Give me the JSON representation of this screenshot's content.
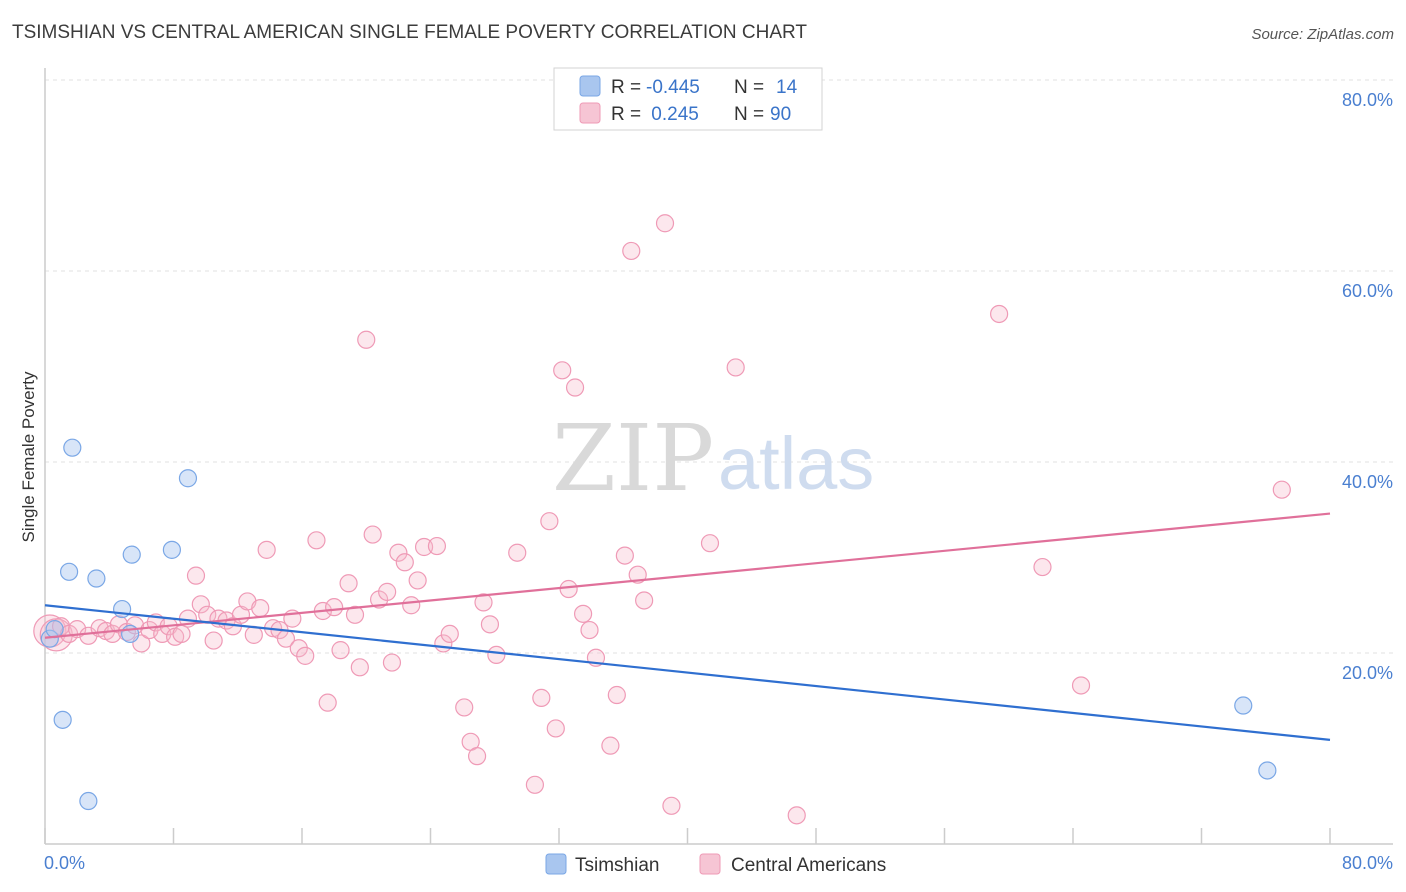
{
  "header": {
    "title": "TSIMSHIAN VS CENTRAL AMERICAN SINGLE FEMALE POVERTY CORRELATION CHART",
    "source": "Source: ZipAtlas.com"
  },
  "watermark": {
    "zip": "ZIP",
    "atlas": "atlas"
  },
  "legend_box": {
    "rows": [
      {
        "r_label": "R =",
        "r_value": "-0.445",
        "n_label": "N =",
        "n_value": "14",
        "color": "#a9c6ef"
      },
      {
        "r_label": "R =",
        "r_value": " 0.245",
        "n_label": "N =",
        "n_value": "90",
        "color": "#f6b9cc"
      }
    ]
  },
  "bottom_legend": {
    "items": [
      {
        "label": "Tsimshian",
        "color": "#a9c6ef"
      },
      {
        "label": "Central Americans",
        "color": "#f6b9cc"
      }
    ]
  },
  "chart_data": {
    "type": "scatter",
    "title": "TSIMSHIAN VS CENTRAL AMERICAN SINGLE FEMALE POVERTY CORRELATION CHART",
    "xlabel": "",
    "ylabel": "Single Female Poverty",
    "xlim": [
      0,
      80
    ],
    "ylim": [
      0,
      80
    ],
    "x_tick_labels": [
      "0.0%",
      "80.0%"
    ],
    "y_ticks": [
      20,
      40,
      60,
      80
    ],
    "y_tick_labels": [
      "20.0%",
      "40.0%",
      "60.0%",
      "80.0%"
    ],
    "grid": true,
    "colors": {
      "tsimshian": "#7aa7e6",
      "tsimshian_line": "#2f6fd0",
      "central": "#ef9ab6",
      "central_line": "#e0709a"
    },
    "series": [
      {
        "name": "Tsimshian",
        "trend": {
          "x0": 0,
          "y0": 25.0,
          "x1": 80,
          "y1": 10.9
        },
        "points": [
          [
            0.3,
            21.5
          ],
          [
            0.6,
            22.5
          ],
          [
            1.1,
            13.0
          ],
          [
            1.5,
            28.5
          ],
          [
            1.7,
            41.5
          ],
          [
            2.7,
            4.5
          ],
          [
            3.2,
            27.8
          ],
          [
            4.8,
            24.6
          ],
          [
            5.3,
            22.0
          ],
          [
            5.4,
            30.3
          ],
          [
            7.9,
            30.8
          ],
          [
            8.9,
            38.3
          ],
          [
            74.6,
            14.5
          ],
          [
            76.1,
            7.7
          ]
        ]
      },
      {
        "name": "Central Americans",
        "trend": {
          "x0": 0,
          "y0": 21.6,
          "x1": 80,
          "y1": 34.6
        },
        "points": [
          [
            0.3,
            22.3
          ],
          [
            0.7,
            21.9
          ],
          [
            1.0,
            22.8
          ],
          [
            1.5,
            22.0
          ],
          [
            2.0,
            22.5
          ],
          [
            2.7,
            21.8
          ],
          [
            3.4,
            22.6
          ],
          [
            3.8,
            22.3
          ],
          [
            4.2,
            22.0
          ],
          [
            4.6,
            23.0
          ],
          [
            5.1,
            22.2
          ],
          [
            5.6,
            22.9
          ],
          [
            6.0,
            21.0
          ],
          [
            6.5,
            22.4
          ],
          [
            6.9,
            23.2
          ],
          [
            7.3,
            22.0
          ],
          [
            7.7,
            22.8
          ],
          [
            8.1,
            21.7
          ],
          [
            8.5,
            22.0
          ],
          [
            8.9,
            23.6
          ],
          [
            9.4,
            28.1
          ],
          [
            9.7,
            25.1
          ],
          [
            10.1,
            24.0
          ],
          [
            10.5,
            21.3
          ],
          [
            10.8,
            23.6
          ],
          [
            11.3,
            23.4
          ],
          [
            11.7,
            22.8
          ],
          [
            12.2,
            24.0
          ],
          [
            12.6,
            25.4
          ],
          [
            13.0,
            21.9
          ],
          [
            13.4,
            24.7
          ],
          [
            13.8,
            30.8
          ],
          [
            14.2,
            22.6
          ],
          [
            14.6,
            22.4
          ],
          [
            15.0,
            21.5
          ],
          [
            15.4,
            23.6
          ],
          [
            15.8,
            20.5
          ],
          [
            16.2,
            19.7
          ],
          [
            16.9,
            31.8
          ],
          [
            17.3,
            24.4
          ],
          [
            17.6,
            14.8
          ],
          [
            18.0,
            24.8
          ],
          [
            18.4,
            20.3
          ],
          [
            18.9,
            27.3
          ],
          [
            19.3,
            24.0
          ],
          [
            19.6,
            18.5
          ],
          [
            20.0,
            52.8
          ],
          [
            20.4,
            32.4
          ],
          [
            20.8,
            25.6
          ],
          [
            21.3,
            26.4
          ],
          [
            21.6,
            19.0
          ],
          [
            22.0,
            30.5
          ],
          [
            22.4,
            29.5
          ],
          [
            22.8,
            25.0
          ],
          [
            23.2,
            27.6
          ],
          [
            23.6,
            31.1
          ],
          [
            24.4,
            31.2
          ],
          [
            24.8,
            21.0
          ],
          [
            25.2,
            22.0
          ],
          [
            26.1,
            14.3
          ],
          [
            26.5,
            10.7
          ],
          [
            26.9,
            9.2
          ],
          [
            27.3,
            25.3
          ],
          [
            27.7,
            23.0
          ],
          [
            28.1,
            19.8
          ],
          [
            29.4,
            30.5
          ],
          [
            30.5,
            6.2
          ],
          [
            30.9,
            15.3
          ],
          [
            31.4,
            33.8
          ],
          [
            31.8,
            12.1
          ],
          [
            32.2,
            49.6
          ],
          [
            32.6,
            26.7
          ],
          [
            33.0,
            47.8
          ],
          [
            33.5,
            24.1
          ],
          [
            33.9,
            22.4
          ],
          [
            34.3,
            19.5
          ],
          [
            35.2,
            10.3
          ],
          [
            35.6,
            15.6
          ],
          [
            36.1,
            30.2
          ],
          [
            36.5,
            62.1
          ],
          [
            36.9,
            28.2
          ],
          [
            37.3,
            25.5
          ],
          [
            38.6,
            65.0
          ],
          [
            39.0,
            4.0
          ],
          [
            41.4,
            31.5
          ],
          [
            43.0,
            49.9
          ],
          [
            46.8,
            3.0
          ],
          [
            59.4,
            55.5
          ],
          [
            62.1,
            29.0
          ],
          [
            64.5,
            16.6
          ],
          [
            77.0,
            37.1
          ]
        ]
      }
    ]
  }
}
